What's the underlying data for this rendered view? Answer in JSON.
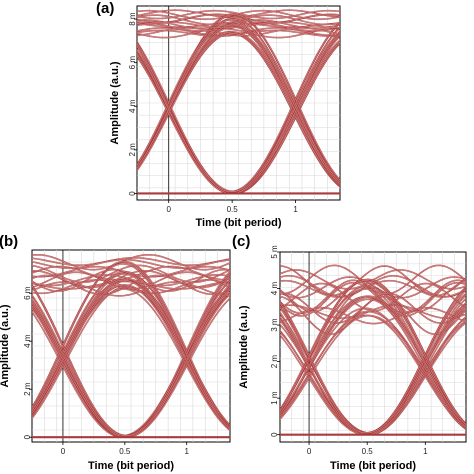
{
  "trace_color": "#a83c3c",
  "trace_highlight": "#e8b0b0",
  "chart_data": [
    {
      "type": "line",
      "panel_label": "(a)",
      "title": "",
      "xlabel": "Time (bit period)",
      "ylabel": "Amplitude (a.u.)",
      "xlim": [
        -0.25,
        1.35
      ],
      "ylim": [
        -0.3,
        8.6
      ],
      "x_ticks": [
        {
          "value": 0,
          "label": "0"
        },
        {
          "value": 0.5,
          "label": "0.5"
        },
        {
          "value": 1,
          "label": "1"
        }
      ],
      "y_ticks": [
        {
          "value": 0,
          "label": "0"
        },
        {
          "value": 2,
          "label": "2 m"
        },
        {
          "value": 4,
          "label": "4 m"
        },
        {
          "value": 6,
          "label": "6 m"
        },
        {
          "value": 8,
          "label": "8 m"
        }
      ],
      "grid": true,
      "eye": {
        "one_levels": [
          7.4,
          7.7,
          8.0,
          8.2
        ],
        "zero_levels": [
          0.0,
          0.08
        ],
        "crossing_x": [
          0.0,
          1.0
        ],
        "crossing_y": 3.0,
        "ripple": 0.15
      }
    },
    {
      "type": "line",
      "panel_label": "(b)",
      "title": "",
      "xlabel": "Time (bit period)",
      "ylabel": "Amplitude (a.u.)",
      "xlim": [
        -0.25,
        1.35
      ],
      "ylim": [
        -0.2,
        7.8
      ],
      "x_ticks": [
        {
          "value": 0,
          "label": "0"
        },
        {
          "value": 0.5,
          "label": "0.5"
        },
        {
          "value": 1,
          "label": "1"
        }
      ],
      "y_ticks": [
        {
          "value": 0,
          "label": "0"
        },
        {
          "value": 2,
          "label": "2 m"
        },
        {
          "value": 4,
          "label": "4 m"
        },
        {
          "value": 6,
          "label": "6 m"
        }
      ],
      "grid": true,
      "eye": {
        "one_levels": [
          6.3,
          6.6,
          6.9,
          7.2
        ],
        "zero_levels": [
          0.0,
          0.06
        ],
        "crossing_x": [
          0.0,
          1.0
        ],
        "crossing_y": 2.6,
        "ripple": 0.3
      }
    },
    {
      "type": "line",
      "panel_label": "(c)",
      "title": "",
      "xlabel": "Time (bit period)",
      "ylabel": "Amplitude (a.u.)",
      "xlim": [
        -0.25,
        1.35
      ],
      "ylim": [
        -0.2,
        5.0
      ],
      "x_ticks": [
        {
          "value": 0,
          "label": "0"
        },
        {
          "value": 0.5,
          "label": "0.5"
        },
        {
          "value": 1,
          "label": "1"
        }
      ],
      "y_ticks": [
        {
          "value": 0,
          "label": "0"
        },
        {
          "value": 1,
          "label": "1 m"
        },
        {
          "value": 2,
          "label": "2 m"
        },
        {
          "value": 3,
          "label": "3 m"
        },
        {
          "value": 4,
          "label": "4 m"
        },
        {
          "value": 5,
          "label": "5 m"
        }
      ],
      "grid": true,
      "eye": {
        "one_levels": [
          3.4,
          3.7,
          4.0,
          4.3
        ],
        "zero_levels": [
          0.0,
          0.05
        ],
        "crossing_x": [
          0.0,
          1.0
        ],
        "crossing_y": 2.0,
        "ripple": 0.35
      }
    }
  ]
}
